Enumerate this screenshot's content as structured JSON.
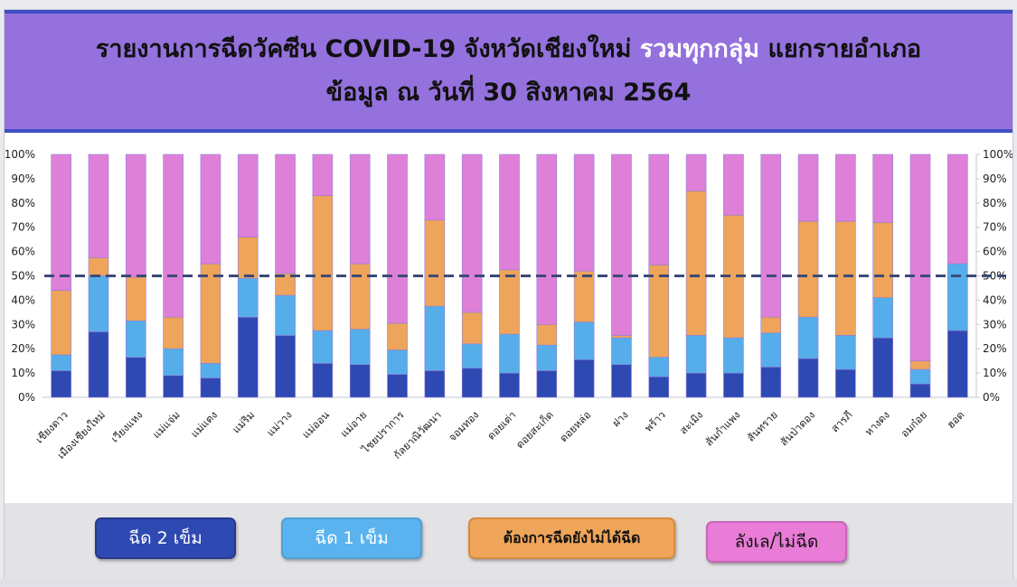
{
  "header": {
    "title_part1": "รายงานการฉีดวัคซีน COVID-19 จังหวัดเชียงใหม่ ",
    "title_highlight": "รวมทุกกลุ่ม",
    "title_part2": " แยกรายอำเภอ",
    "subtitle": "ข้อมูล ณ วันที่ 30 สิงหาคม 2564"
  },
  "legend": {
    "dose2": "ฉีด 2 เข็ม",
    "dose1": "ฉีด 1 เข็ม",
    "want": "ต้องการฉีดยังไม่ได้ฉีด",
    "hesitant": "ลังเล/ไม่ฉีด"
  },
  "colors": {
    "dose2": "#2f49b3",
    "dose1": "#55aeea",
    "want": "#eea45a",
    "hesitant": "#df80d8",
    "reference_line": "#3c4a77"
  },
  "chart_data": {
    "type": "bar",
    "stacked": true,
    "categories": [
      "เชียงดาว",
      "เมืองเชียงใหม่",
      "เวียงแหง",
      "แม่แจ่ม",
      "แม่แตง",
      "แม่ริม",
      "แม่วาง",
      "แม่ออน",
      "แม่อาย",
      "ไชยปราการ",
      "กัลยาณิวัฒนา",
      "จอมทอง",
      "ดอยเต่า",
      "ดอยสะเก็ด",
      "ดอยหล่อ",
      "ฝาง",
      "พร้าว",
      "สะเมิง",
      "สันกำแพง",
      "สันทราย",
      "สันป่าตอง",
      "สารภี",
      "หางดง",
      "อมก๋อย",
      "ฮอด"
    ],
    "series": [
      {
        "name": "ฉีด 2 เข็ม",
        "values": [
          11,
          27,
          16.5,
          9,
          8,
          33,
          25.5,
          14,
          13.5,
          9.5,
          11,
          12,
          10,
          11,
          15.5,
          13.5,
          8.5,
          10,
          10,
          12.5,
          16,
          11.5,
          24.5,
          5.5,
          27.5
        ]
      },
      {
        "name": "ฉีด 1 เข็ม",
        "values": [
          6.5,
          23,
          15,
          11,
          6,
          16,
          16.5,
          13.5,
          14.5,
          10,
          26.5,
          10,
          16,
          10.5,
          15.5,
          11,
          8,
          15.5,
          14.5,
          14,
          17,
          14,
          16.5,
          6,
          27.5
        ]
      },
      {
        "name": "ต้องการฉีดยังไม่ได้ฉีด",
        "values": [
          26.5,
          7.5,
          18,
          13,
          41,
          17,
          9,
          55.5,
          27,
          11,
          35.5,
          13,
          26.5,
          8.5,
          21,
          1,
          38,
          59.5,
          50.5,
          6.5,
          39.5,
          47,
          31,
          3.5,
          0
        ]
      },
      {
        "name": "ลังเล/ไม่ฉีด",
        "values": [
          56,
          42.5,
          50.5,
          67,
          45,
          34,
          49,
          17,
          45,
          69.5,
          27,
          65,
          47.5,
          70,
          48,
          74.5,
          45.5,
          15,
          25,
          67,
          27.5,
          27.5,
          28,
          85,
          45
        ]
      }
    ],
    "y_axis_left": {
      "min": 0,
      "max": 100,
      "ticks": [
        "0%",
        "10%",
        "20%",
        "30%",
        "40%",
        "50%",
        "60%",
        "70%",
        "80%",
        "90%",
        "100%"
      ]
    },
    "y_axis_right": {
      "min": 0,
      "max": 100,
      "ticks": [
        "0%",
        "10%",
        "20%",
        "30%",
        "40%",
        "50%",
        "60%",
        "70%",
        "80%",
        "90%",
        "100%"
      ]
    },
    "reference_line": 50,
    "grid": false,
    "legend_position": "bottom"
  }
}
